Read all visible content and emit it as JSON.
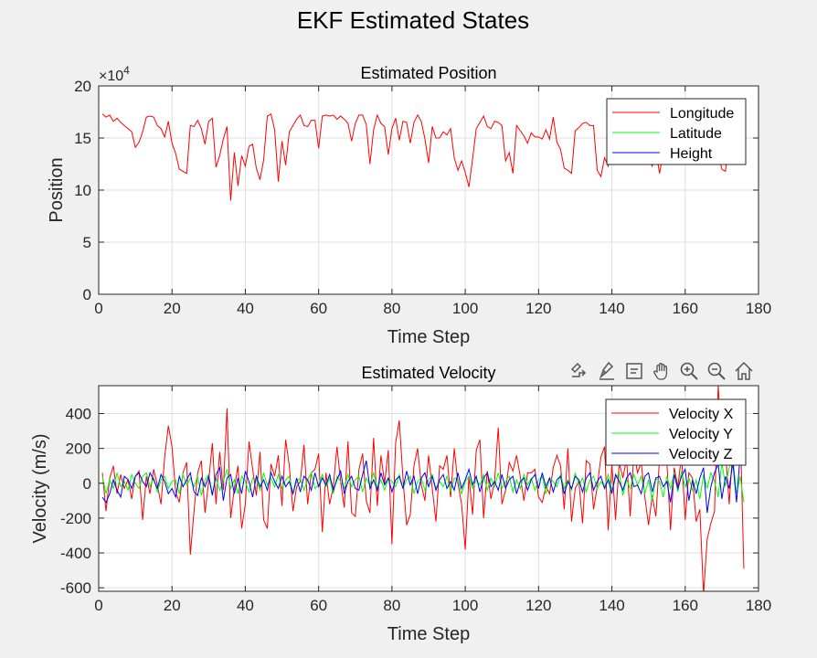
{
  "figure": {
    "title": "EKF Estimated States",
    "background": "#f0f0f0"
  },
  "toolbar": {
    "icons": [
      "export-icon",
      "brush-icon",
      "datatip-icon",
      "pan-icon",
      "zoom-in-icon",
      "zoom-out-icon",
      "home-icon"
    ]
  },
  "chart_data": [
    {
      "type": "line",
      "title": "Estimated Position",
      "xlabel": "Time Step",
      "ylabel": "Position",
      "exponent_label": "×10^4",
      "xlim": [
        0,
        180
      ],
      "ylim": [
        0,
        20
      ],
      "xticks": [
        0,
        20,
        40,
        60,
        80,
        100,
        120,
        140,
        160,
        180
      ],
      "yticks": [
        0,
        5,
        10,
        15,
        20
      ],
      "grid": true,
      "legend_location": "top-right",
      "x_start": 1,
      "series": [
        {
          "name": "Longitude",
          "color": "#ff0000",
          "values": [
            17.3,
            17.0,
            17.2,
            16.6,
            16.9,
            16.5,
            16.2,
            15.9,
            15.6,
            14.1,
            14.6,
            15.6,
            17.0,
            17.1,
            17.0,
            16.2,
            15.9,
            15.1,
            16.6,
            14.5,
            13.5,
            12.0,
            11.8,
            11.6,
            16.2,
            16.1,
            16.7,
            15.9,
            14.4,
            16.6,
            16.9,
            12.2,
            13.3,
            14.9,
            16.1,
            9.0,
            13.6,
            10.4,
            13.3,
            12.3,
            14.2,
            14.4,
            12.1,
            11.0,
            12.9,
            17.1,
            17.3,
            15.8,
            10.8,
            14.7,
            12.4,
            15.6,
            16.2,
            16.8,
            17.2,
            16.2,
            16.1,
            16.7,
            16.7,
            14.0,
            17.1,
            17.2,
            17.1,
            17.2,
            16.8,
            17.1,
            16.8,
            16.4,
            14.7,
            16.4,
            17.2,
            17.2,
            16.3,
            12.5,
            15.8,
            17.2,
            16.4,
            16.1,
            13.4,
            15.9,
            16.9,
            14.8,
            16.6,
            16.5,
            14.5,
            16.5,
            17.2,
            16.6,
            14.9,
            12.6,
            16.1,
            15.0,
            15.0,
            15.6,
            15.3,
            15.9,
            13.1,
            11.9,
            12.8,
            11.7,
            10.3,
            13.0,
            15.9,
            16.5,
            17.1,
            16.1,
            15.9,
            16.6,
            16.5,
            16.2,
            12.8,
            13.6,
            11.6,
            16.2,
            15.7,
            15.2,
            14.5,
            15.5,
            15.1,
            15.1,
            14.9,
            15.8,
            14.9,
            17.0,
            14.6,
            13.9,
            12.1,
            11.9,
            11.6,
            15.7,
            16.0,
            16.4,
            16.5,
            16.2,
            16.2,
            11.9,
            11.3,
            13.1,
            12.3,
            14.2,
            13.6,
            13.4,
            14.7,
            13.5,
            13.5,
            12.6,
            13.1,
            13.2,
            13.5,
            12.9,
            12.3,
            13.8,
            11.6,
            13.6,
            13.6,
            14.2,
            13.5,
            14.3,
            14.6,
            13.3,
            14.8,
            14.5,
            15.4,
            16.1,
            15.6,
            15.0,
            14.7,
            13.8,
            13.6,
            12.0,
            11.8,
            16.0
          ]
        },
        {
          "name": "Latitude",
          "color": "#00ff00",
          "values": [
            0.0
          ]
        },
        {
          "name": "Height",
          "color": "#0000ff",
          "values": [
            0.0
          ]
        }
      ]
    },
    {
      "type": "line",
      "title": "Estimated Velocity",
      "xlabel": "Time Step",
      "ylabel": "Velocity (m/s)",
      "xlim": [
        0,
        180
      ],
      "ylim": [
        -620,
        560
      ],
      "xticks": [
        0,
        20,
        40,
        60,
        80,
        100,
        120,
        140,
        160,
        180
      ],
      "yticks": [
        -600,
        -400,
        -200,
        0,
        200,
        400
      ],
      "grid": true,
      "legend_location": "top-right",
      "x_start": 1,
      "series": [
        {
          "name": "Velocity X",
          "color": "#ff0000",
          "values": [
            60,
            -160,
            30,
            100,
            -60,
            50,
            -30,
            20,
            -90,
            40,
            70,
            -210,
            40,
            -60,
            80,
            -10,
            -120,
            150,
            330,
            210,
            -50,
            -110,
            60,
            120,
            -410,
            -160,
            60,
            130,
            -170,
            10,
            230,
            -120,
            180,
            -40,
            430,
            -200,
            -30,
            100,
            -260,
            -120,
            240,
            80,
            -70,
            180,
            -210,
            -260,
            110,
            40,
            160,
            -130,
            250,
            100,
            -160,
            -20,
            10,
            220,
            -120,
            60,
            80,
            170,
            -280,
            60,
            -120,
            -20,
            210,
            10,
            -140,
            240,
            -170,
            -190,
            80,
            170,
            -100,
            -170,
            260,
            -130,
            160,
            0,
            190,
            -350,
            230,
            360,
            30,
            -240,
            -180,
            100,
            200,
            -10,
            -100,
            160,
            -30,
            -220,
            100,
            80,
            160,
            -80,
            200,
            0,
            -120,
            -380,
            40,
            -180,
            190,
            250,
            -200,
            70,
            -90,
            10,
            320,
            -120,
            -40,
            120,
            70,
            160,
            40,
            -100,
            60,
            60,
            80,
            -80,
            -110,
            -20,
            -60,
            90,
            160,
            100,
            -150,
            200,
            -220,
            -30,
            10,
            -230,
            130,
            110,
            -150,
            -20,
            150,
            210,
            -270,
            110,
            -210,
            120,
            30,
            140,
            -190,
            180,
            60,
            120,
            -80,
            -240,
            -70,
            -190,
            140,
            130,
            120,
            -270,
            90,
            -20,
            160,
            -210,
            60,
            30,
            -220,
            -150,
            -640,
            -320,
            -230,
            -160,
            560,
            230,
            180,
            -120,
            200,
            320,
            340,
            -490
          ]
        },
        {
          "name": "Velocity Y",
          "color": "#00ff00",
          "values": [
            40,
            -60,
            20,
            -30,
            60,
            -20,
            10,
            -40,
            50,
            0,
            -30,
            40,
            60,
            -20,
            30,
            -50,
            20,
            40,
            -30,
            10,
            20,
            -60,
            50,
            -10,
            30,
            -20,
            40,
            -70,
            20,
            50,
            -60,
            30,
            -40,
            10,
            80,
            -30,
            20,
            -60,
            40,
            10,
            -50,
            30,
            20,
            -40,
            60,
            -10,
            30,
            -20,
            50,
            -30,
            20,
            40,
            -60,
            10,
            30,
            -40,
            20,
            60,
            -30,
            -10,
            50,
            -20,
            30,
            -60,
            40,
            10,
            -30,
            50,
            -20,
            20,
            40,
            -50,
            30,
            -10,
            60,
            -30,
            20,
            -40,
            30,
            10,
            -20,
            50,
            -30,
            20,
            40,
            -60,
            10,
            30,
            -40,
            20,
            50,
            -30,
            10,
            -20,
            40,
            -50,
            30,
            20,
            -60,
            10,
            40,
            -30,
            20,
            -10,
            50,
            -40,
            30,
            -20,
            60,
            -30,
            10,
            40,
            -50,
            20,
            -30,
            50,
            -10,
            30,
            -40,
            20,
            40,
            -60,
            30,
            10,
            -20,
            50,
            -30,
            20,
            -40,
            60,
            -10,
            30,
            -50,
            20,
            40,
            -30,
            10,
            -20,
            50,
            -40,
            30,
            60,
            -70,
            20,
            -30,
            50,
            -10,
            40,
            -60,
            20,
            -100,
            30,
            10,
            -80,
            40,
            -30,
            60,
            -50,
            70,
            -20,
            30,
            -40,
            20,
            -90,
            50,
            -30,
            60,
            10,
            -80,
            120,
            -20,
            90,
            150,
            -60,
            40,
            -110
          ]
        },
        {
          "name": "Velocity Z",
          "color": "#0000ff",
          "values": [
            -80,
            -110,
            -60,
            20,
            -40,
            -80,
            40,
            20,
            -30,
            40,
            60,
            10,
            -20,
            60,
            20,
            -30,
            50,
            10,
            -60,
            -30,
            -80,
            40,
            -20,
            20,
            60,
            -50,
            -70,
            30,
            -20,
            40,
            -70,
            50,
            90,
            -100,
            30,
            50,
            -60,
            30,
            -60,
            70,
            10,
            -80,
            40,
            -20,
            20,
            -40,
            60,
            10,
            -30,
            40,
            -20,
            10,
            -60,
            30,
            -50,
            40,
            20,
            -40,
            60,
            -20,
            30,
            -10,
            50,
            -40,
            20,
            70,
            -60,
            10,
            40,
            -30,
            -40,
            50,
            130,
            -30,
            20,
            -40,
            60,
            -10,
            30,
            -50,
            20,
            40,
            -30,
            70,
            -10,
            40,
            -60,
            30,
            60,
            -20,
            40,
            -40,
            20,
            50,
            -30,
            10,
            -40,
            60,
            -30,
            20,
            80,
            -10,
            40,
            -50,
            30,
            60,
            -20,
            10,
            -40,
            50,
            -30,
            20,
            40,
            -60,
            10,
            30,
            -40,
            20,
            50,
            -30,
            60,
            -20,
            30,
            -50,
            20,
            40,
            -60,
            10,
            -30,
            40,
            20,
            -50,
            30,
            60,
            -40,
            10,
            40,
            -30,
            20,
            -60,
            50,
            10,
            -40,
            30,
            60,
            -20,
            -10,
            -60,
            40,
            60,
            -50,
            30,
            40,
            -20,
            10,
            -110,
            50,
            -30,
            40,
            80,
            -100,
            20,
            -60,
            30,
            90,
            -170,
            -20,
            60,
            110,
            -90,
            40,
            -30,
            120,
            -110,
            160
          ]
        }
      ]
    }
  ]
}
